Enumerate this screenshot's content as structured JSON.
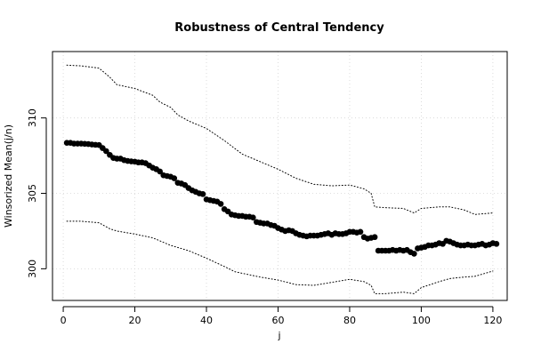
{
  "chart_data": {
    "type": "scatter",
    "title": "Robustness of Central Tendency",
    "xlabel": "j",
    "ylabel": "Winsorized Mean(j/n)",
    "xlim": [
      -3,
      124
    ],
    "ylim": [
      297.9,
      314.4
    ],
    "x_ticks": [
      0,
      20,
      40,
      60,
      80,
      100,
      120
    ],
    "y_ticks": [
      300,
      305,
      310
    ],
    "x_tick_labels": [
      "0",
      "20",
      "40",
      "60",
      "80",
      "100",
      "120"
    ],
    "y_tick_labels": [
      "300",
      "305",
      "310"
    ],
    "grid": true,
    "legend": "none",
    "series": [
      {
        "style": "points",
        "color": "#000000",
        "points": [
          [
            1,
            308.35
          ],
          [
            2,
            308.35
          ],
          [
            3,
            308.3
          ],
          [
            4,
            308.3
          ],
          [
            5,
            308.3
          ],
          [
            6,
            308.28
          ],
          [
            7,
            308.27
          ],
          [
            8,
            308.24
          ],
          [
            9,
            308.22
          ],
          [
            10,
            308.2
          ],
          [
            11,
            308.0
          ],
          [
            12,
            307.8
          ],
          [
            13,
            307.55
          ],
          [
            14,
            307.35
          ],
          [
            15,
            307.3
          ],
          [
            16,
            307.3
          ],
          [
            17,
            307.2
          ],
          [
            18,
            307.15
          ],
          [
            19,
            307.12
          ],
          [
            20,
            307.1
          ],
          [
            21,
            307.05
          ],
          [
            22,
            307.05
          ],
          [
            23,
            307.0
          ],
          [
            24,
            306.85
          ],
          [
            25,
            306.7
          ],
          [
            26,
            306.6
          ],
          [
            27,
            306.45
          ],
          [
            28,
            306.2
          ],
          [
            29,
            306.15
          ],
          [
            30,
            306.1
          ],
          [
            31,
            306.0
          ],
          [
            32,
            305.7
          ],
          [
            33,
            305.65
          ],
          [
            34,
            305.55
          ],
          [
            35,
            305.35
          ],
          [
            36,
            305.2
          ],
          [
            37,
            305.1
          ],
          [
            38,
            305.0
          ],
          [
            39,
            304.95
          ],
          [
            40,
            304.6
          ],
          [
            41,
            304.55
          ],
          [
            42,
            304.5
          ],
          [
            43,
            304.45
          ],
          [
            44,
            304.3
          ],
          [
            45,
            303.95
          ],
          [
            46,
            303.8
          ],
          [
            47,
            303.6
          ],
          [
            48,
            303.55
          ],
          [
            49,
            303.5
          ],
          [
            50,
            303.5
          ],
          [
            51,
            303.45
          ],
          [
            52,
            303.45
          ],
          [
            53,
            303.4
          ],
          [
            54,
            303.1
          ],
          [
            55,
            303.05
          ],
          [
            56,
            303.0
          ],
          [
            57,
            303.0
          ],
          [
            58,
            302.9
          ],
          [
            59,
            302.85
          ],
          [
            60,
            302.7
          ],
          [
            61,
            302.6
          ],
          [
            62,
            302.5
          ],
          [
            63,
            302.55
          ],
          [
            64,
            302.5
          ],
          [
            65,
            302.35
          ],
          [
            66,
            302.25
          ],
          [
            67,
            302.2
          ],
          [
            68,
            302.15
          ],
          [
            69,
            302.2
          ],
          [
            70,
            302.2
          ],
          [
            71,
            302.2
          ],
          [
            72,
            302.25
          ],
          [
            73,
            302.3
          ],
          [
            74,
            302.35
          ],
          [
            75,
            302.25
          ],
          [
            76,
            302.35
          ],
          [
            77,
            302.3
          ],
          [
            78,
            302.3
          ],
          [
            79,
            302.35
          ],
          [
            80,
            302.45
          ],
          [
            81,
            302.45
          ],
          [
            82,
            302.4
          ],
          [
            83,
            302.45
          ],
          [
            84,
            302.1
          ],
          [
            85,
            302.0
          ],
          [
            86,
            302.05
          ],
          [
            87,
            302.1
          ],
          [
            88,
            301.2
          ],
          [
            89,
            301.2
          ],
          [
            90,
            301.2
          ],
          [
            91,
            301.2
          ],
          [
            92,
            301.25
          ],
          [
            93,
            301.2
          ],
          [
            94,
            301.25
          ],
          [
            95,
            301.2
          ],
          [
            96,
            301.25
          ],
          [
            97,
            301.1
          ],
          [
            98,
            301.0
          ],
          [
            99,
            301.35
          ],
          [
            100,
            301.4
          ],
          [
            101,
            301.45
          ],
          [
            102,
            301.55
          ],
          [
            103,
            301.55
          ],
          [
            104,
            301.6
          ],
          [
            105,
            301.7
          ],
          [
            106,
            301.65
          ],
          [
            107,
            301.85
          ],
          [
            108,
            301.8
          ],
          [
            109,
            301.7
          ],
          [
            110,
            301.6
          ],
          [
            111,
            301.55
          ],
          [
            112,
            301.55
          ],
          [
            113,
            301.6
          ],
          [
            114,
            301.55
          ],
          [
            115,
            301.55
          ],
          [
            116,
            301.6
          ],
          [
            117,
            301.65
          ],
          [
            118,
            301.55
          ],
          [
            119,
            301.6
          ],
          [
            120,
            301.7
          ],
          [
            121,
            301.65
          ]
        ]
      },
      {
        "style": "dotted-line",
        "color": "#000000",
        "points": [
          [
            1,
            313.5
          ],
          [
            5,
            313.45
          ],
          [
            10,
            313.3
          ],
          [
            13,
            312.7
          ],
          [
            15,
            312.2
          ],
          [
            20,
            311.95
          ],
          [
            25,
            311.5
          ],
          [
            27,
            311.05
          ],
          [
            30,
            310.7
          ],
          [
            32,
            310.2
          ],
          [
            35,
            309.8
          ],
          [
            40,
            309.3
          ],
          [
            45,
            308.5
          ],
          [
            50,
            307.6
          ],
          [
            55,
            307.1
          ],
          [
            60,
            306.6
          ],
          [
            65,
            306.0
          ],
          [
            70,
            305.6
          ],
          [
            75,
            305.5
          ],
          [
            80,
            305.55
          ],
          [
            84,
            305.3
          ],
          [
            86,
            305.0
          ],
          [
            87,
            304.1
          ],
          [
            90,
            304.05
          ],
          [
            95,
            304.0
          ],
          [
            98,
            303.7
          ],
          [
            100,
            304.0
          ],
          [
            105,
            304.1
          ],
          [
            108,
            304.1
          ],
          [
            112,
            303.9
          ],
          [
            115,
            303.6
          ],
          [
            120,
            303.7
          ]
        ]
      },
      {
        "style": "dotted-line",
        "color": "#000000",
        "points": [
          [
            1,
            303.15
          ],
          [
            5,
            303.15
          ],
          [
            10,
            303.05
          ],
          [
            13,
            302.65
          ],
          [
            15,
            302.5
          ],
          [
            20,
            302.3
          ],
          [
            25,
            302.05
          ],
          [
            30,
            301.55
          ],
          [
            35,
            301.2
          ],
          [
            40,
            300.7
          ],
          [
            45,
            300.15
          ],
          [
            48,
            299.8
          ],
          [
            52,
            299.6
          ],
          [
            55,
            299.45
          ],
          [
            60,
            299.25
          ],
          [
            65,
            298.95
          ],
          [
            70,
            298.9
          ],
          [
            75,
            299.1
          ],
          [
            80,
            299.3
          ],
          [
            84,
            299.15
          ],
          [
            86,
            298.9
          ],
          [
            87,
            298.35
          ],
          [
            90,
            298.35
          ],
          [
            95,
            298.45
          ],
          [
            98,
            298.35
          ],
          [
            100,
            298.75
          ],
          [
            105,
            299.15
          ],
          [
            108,
            299.35
          ],
          [
            112,
            299.45
          ],
          [
            115,
            299.5
          ],
          [
            120,
            299.85
          ]
        ]
      }
    ]
  }
}
